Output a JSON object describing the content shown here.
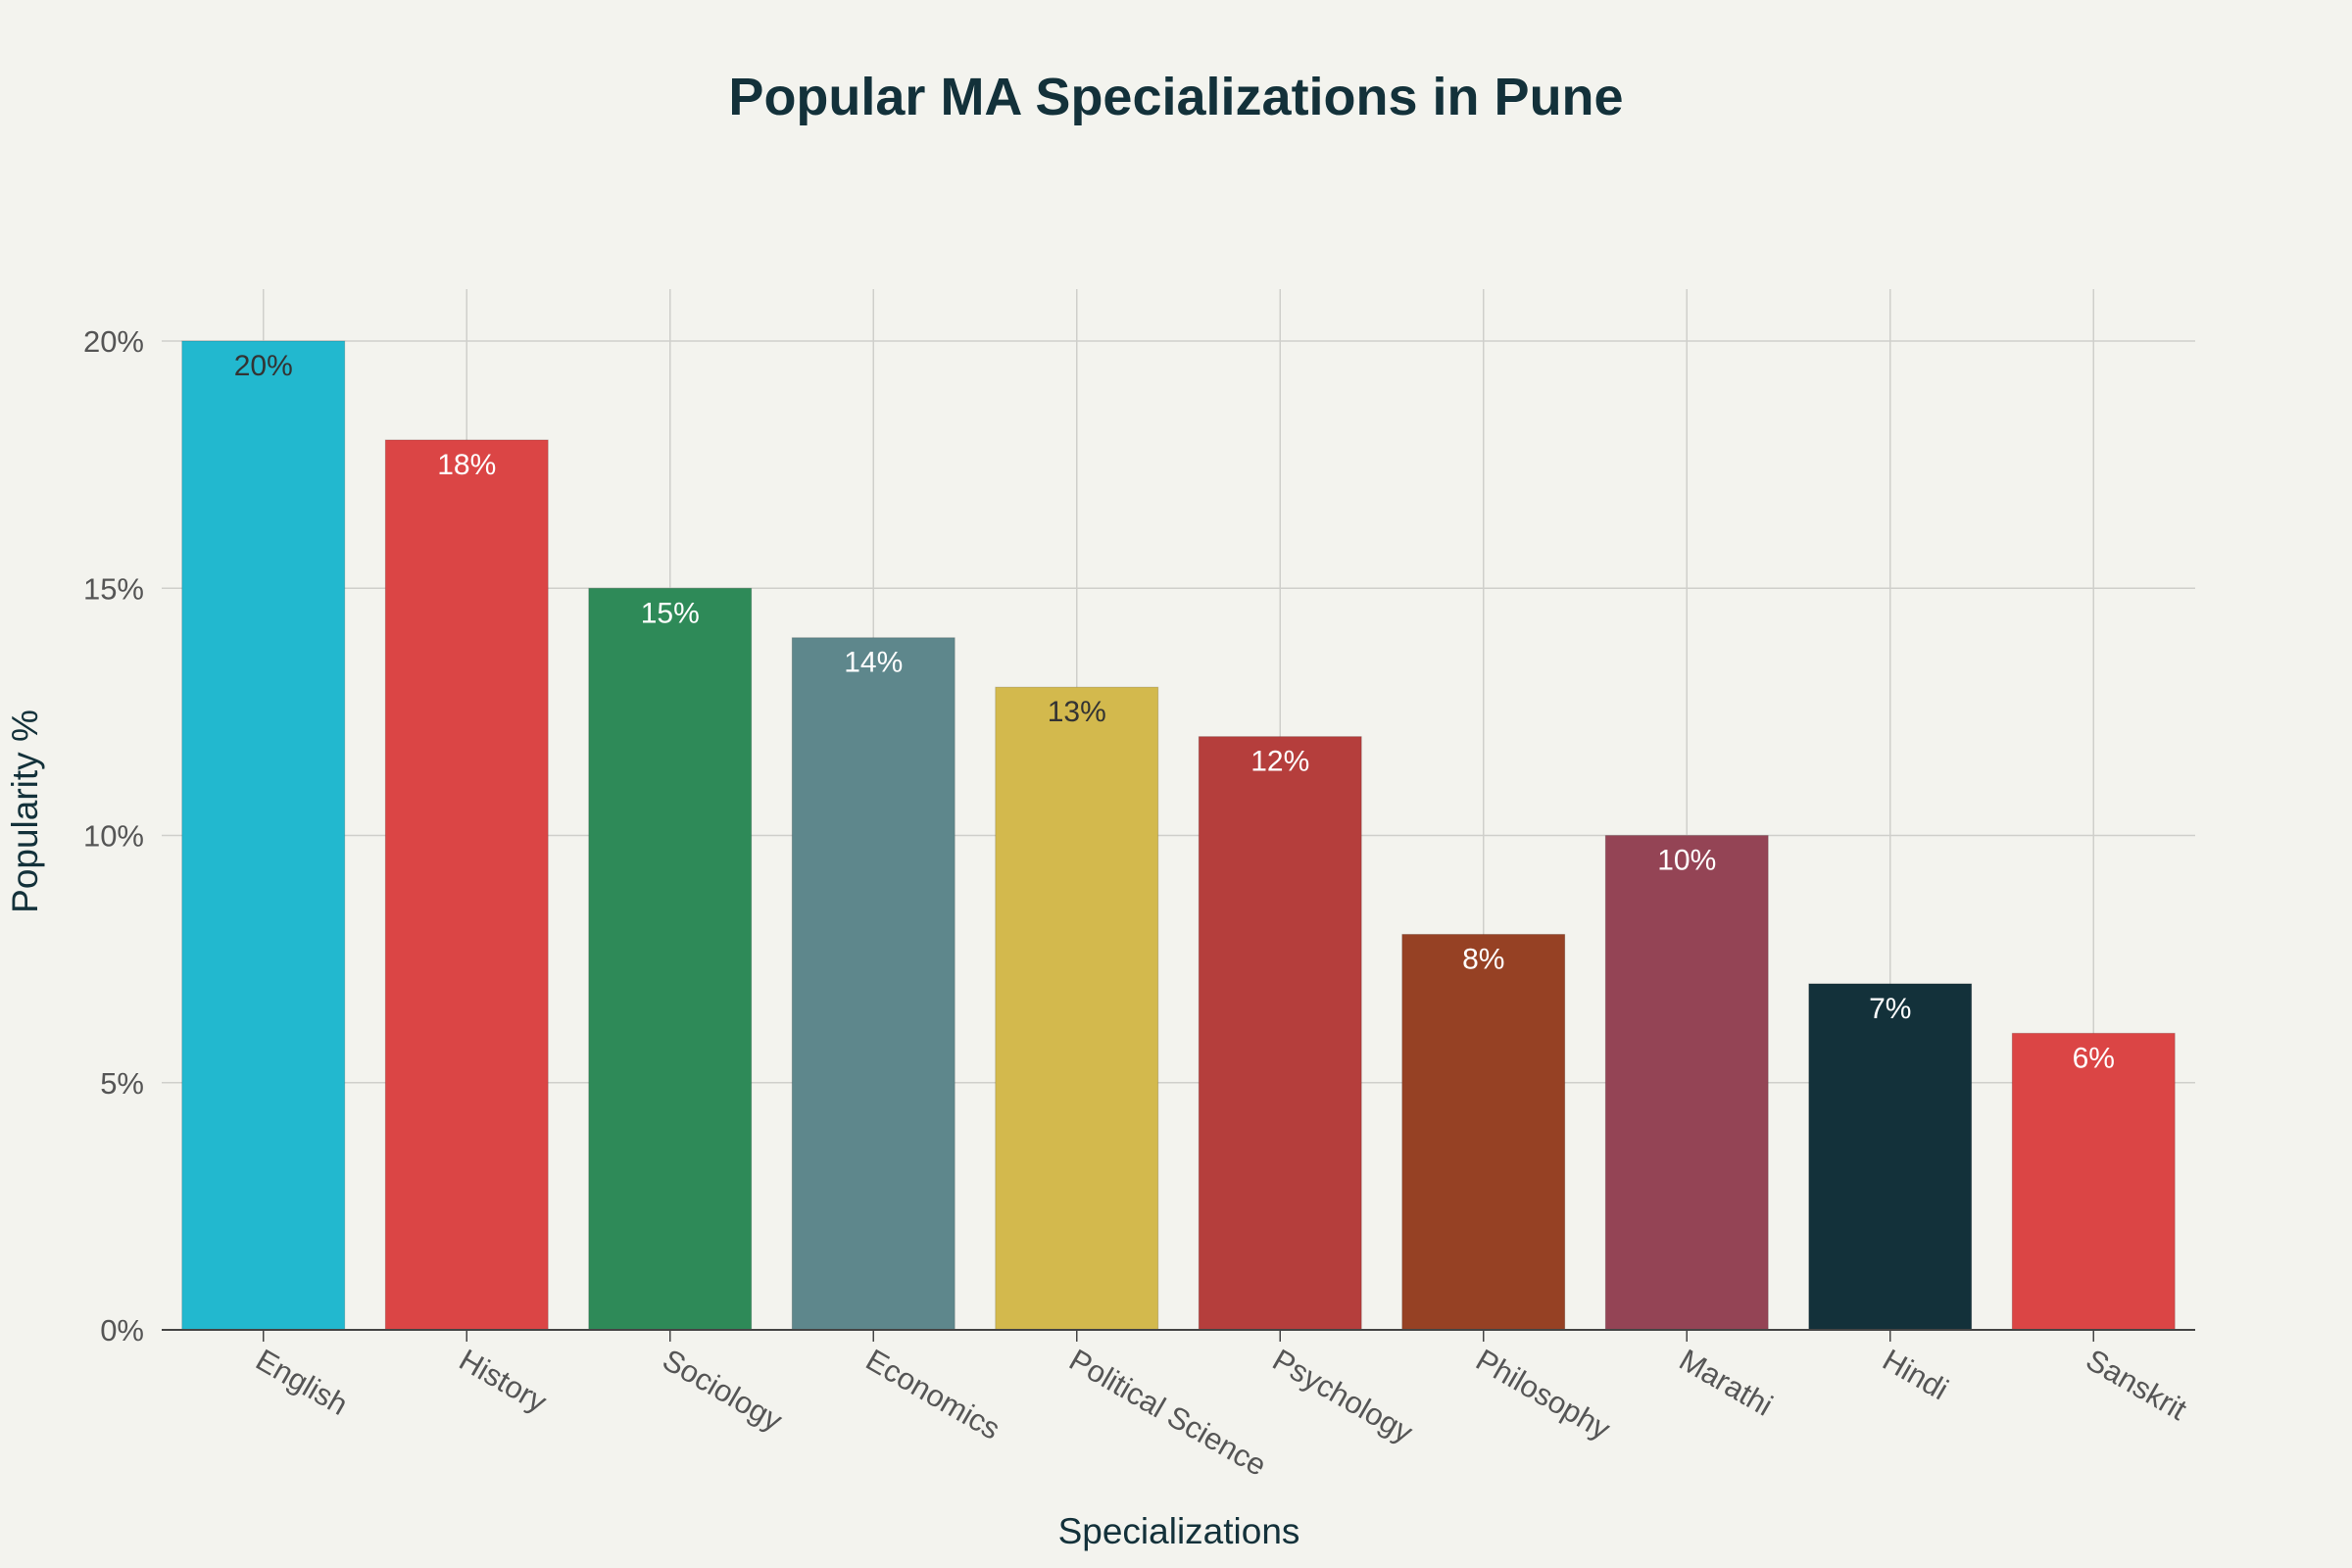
{
  "chart_data": {
    "type": "bar",
    "title": "Popular MA Specializations in Pune",
    "xlabel": "Specializations",
    "ylabel": "Popularity %",
    "categories": [
      "English",
      "History",
      "Sociology",
      "Economics",
      "Political Science",
      "Psychology",
      "Philosophy",
      "Marathi",
      "Hindi",
      "Sanskrit"
    ],
    "values": [
      20,
      18,
      15,
      14,
      13,
      12,
      8,
      10,
      7,
      6
    ],
    "value_labels": [
      "20%",
      "18%",
      "15%",
      "14%",
      "13%",
      "12%",
      "8%",
      "10%",
      "7%",
      "6%"
    ],
    "colors": [
      "#22b8cf",
      "#db4545",
      "#2e8a58",
      "#5e878c",
      "#d3b94d",
      "#b53e3c",
      "#964124",
      "#944455",
      "#13313a",
      "#db4545"
    ],
    "label_colors": [
      "#333333",
      "#ffffff",
      "#ffffff",
      "#ffffff",
      "#333333",
      "#ffffff",
      "#ffffff",
      "#ffffff",
      "#ffffff",
      "#ffffff"
    ],
    "ylim": [
      0,
      21
    ],
    "yticks": [
      0,
      5,
      10,
      15,
      20
    ],
    "ytick_labels": [
      "0%",
      "5%",
      "10%",
      "15%",
      "20%"
    ],
    "grid": true,
    "legend": "none"
  }
}
